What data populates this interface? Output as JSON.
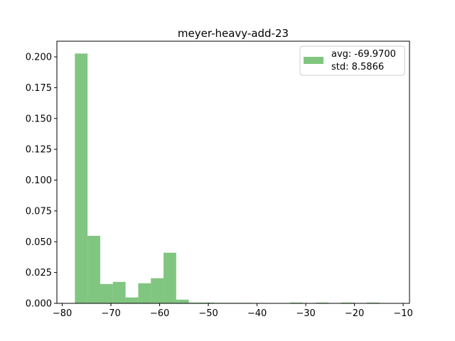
{
  "chart_data": {
    "type": "histogram",
    "title": "meyer-heavy-add-23",
    "xlabel": "",
    "ylabel": "",
    "xlim": [
      -81.1,
      -8.7
    ],
    "ylim": [
      0,
      0.2127
    ],
    "xticks": [
      -80,
      -70,
      -60,
      -50,
      -40,
      -30,
      -20,
      -10
    ],
    "xtick_labels": [
      "−80",
      "−70",
      "−60",
      "−50",
      "−40",
      "−30",
      "−20",
      "−10"
    ],
    "yticks": [
      0.0,
      0.025,
      0.05,
      0.075,
      0.1,
      0.125,
      0.15,
      0.175,
      0.2
    ],
    "ytick_labels": [
      "0.000",
      "0.025",
      "0.050",
      "0.075",
      "0.100",
      "0.125",
      "0.150",
      "0.175",
      "0.200"
    ],
    "bar_color": "#2ca02c",
    "bar_opacity": 0.6,
    "bins": [
      {
        "x0": -77.4,
        "x1": -74.8,
        "value": 0.2027
      },
      {
        "x0": -74.8,
        "x1": -72.2,
        "value": 0.0548
      },
      {
        "x0": -72.2,
        "x1": -69.6,
        "value": 0.0157
      },
      {
        "x0": -69.6,
        "x1": -67.0,
        "value": 0.0174
      },
      {
        "x0": -67.0,
        "x1": -64.4,
        "value": 0.0048
      },
      {
        "x0": -64.4,
        "x1": -61.8,
        "value": 0.0163
      },
      {
        "x0": -61.8,
        "x1": -59.2,
        "value": 0.0204
      },
      {
        "x0": -59.2,
        "x1": -56.6,
        "value": 0.0411
      },
      {
        "x0": -56.6,
        "x1": -54.0,
        "value": 0.003
      },
      {
        "x0": -54.0,
        "x1": -51.4,
        "value": 0.0006
      },
      {
        "x0": -51.4,
        "x1": -48.8,
        "value": 0.0006
      },
      {
        "x0": -48.8,
        "x1": -46.2,
        "value": 0.0004
      },
      {
        "x0": -46.2,
        "x1": -43.6,
        "value": 0.0004
      },
      {
        "x0": -43.6,
        "x1": -41.0,
        "value": 0.0004
      },
      {
        "x0": -33.2,
        "x1": -30.6,
        "value": 0.0006
      },
      {
        "x0": -27.9,
        "x1": -25.3,
        "value": 0.0006
      },
      {
        "x0": -22.7,
        "x1": -20.1,
        "value": 0.0006
      },
      {
        "x0": -17.5,
        "x1": -14.9,
        "value": 0.0006
      }
    ],
    "legend": {
      "placement": "top-right",
      "lines": [
        "avg: -69.9700",
        "std: 8.5866"
      ]
    },
    "grid": false
  }
}
